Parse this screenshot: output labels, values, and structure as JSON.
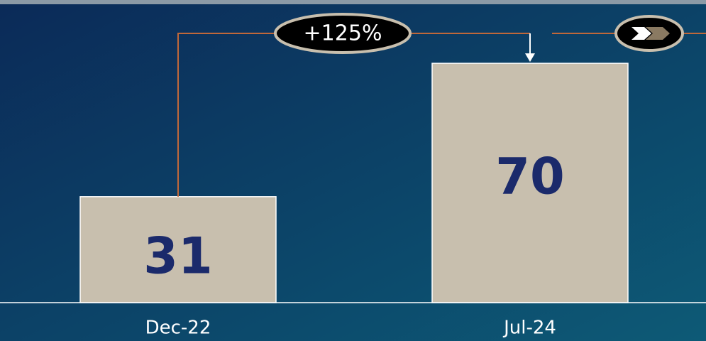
{
  "chart_data": {
    "type": "bar",
    "categories": [
      "Dec-22",
      "Jul-24"
    ],
    "values": [
      31,
      70
    ],
    "color": "#c8bfae",
    "ylim": [
      0,
      80
    ],
    "annotation": "+125%"
  }
}
